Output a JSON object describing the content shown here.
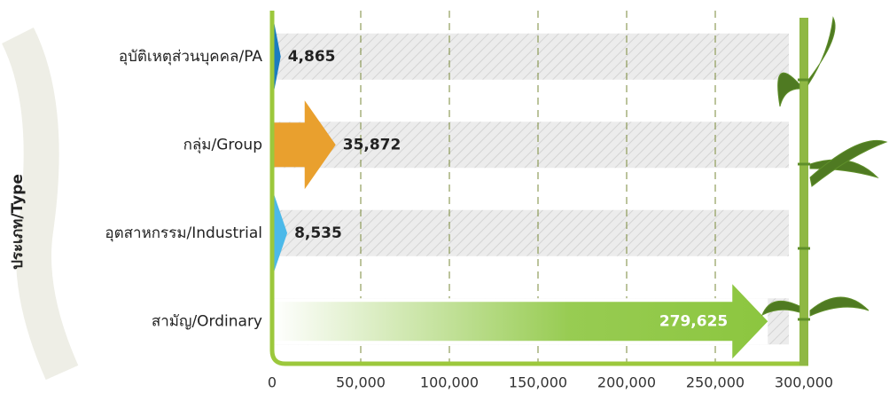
{
  "chart_data": {
    "type": "bar",
    "orientation": "horizontal",
    "y_label": "ประเภท/Type",
    "categories": [
      "อุบัติเหตุส่วนบุคคล/PA",
      "กลุ่ม/Group",
      "อุตสาหกรรม/Industrial",
      "สามัญ/Ordinary"
    ],
    "values": [
      4865,
      35872,
      8535,
      279625
    ],
    "value_labels": [
      "4,865",
      "35,872",
      "8,535",
      "279,625"
    ],
    "colors": [
      "#1b7cc0",
      "#e9a02e",
      "#4cb9e9",
      "#8cc63f"
    ],
    "xlim": [
      0,
      300000
    ],
    "xticks": [
      0,
      {
        "value": 50000,
        "label": "50,000"
      },
      {
        "value": 100000,
        "label": "100,000"
      },
      {
        "value": 150000,
        "label": "150,000"
      },
      {
        "value": 200000,
        "label": "200,000"
      },
      {
        "value": 250000,
        "label": "250,000"
      },
      {
        "value": 300000,
        "label": "300,000"
      }
    ],
    "grid": true
  }
}
